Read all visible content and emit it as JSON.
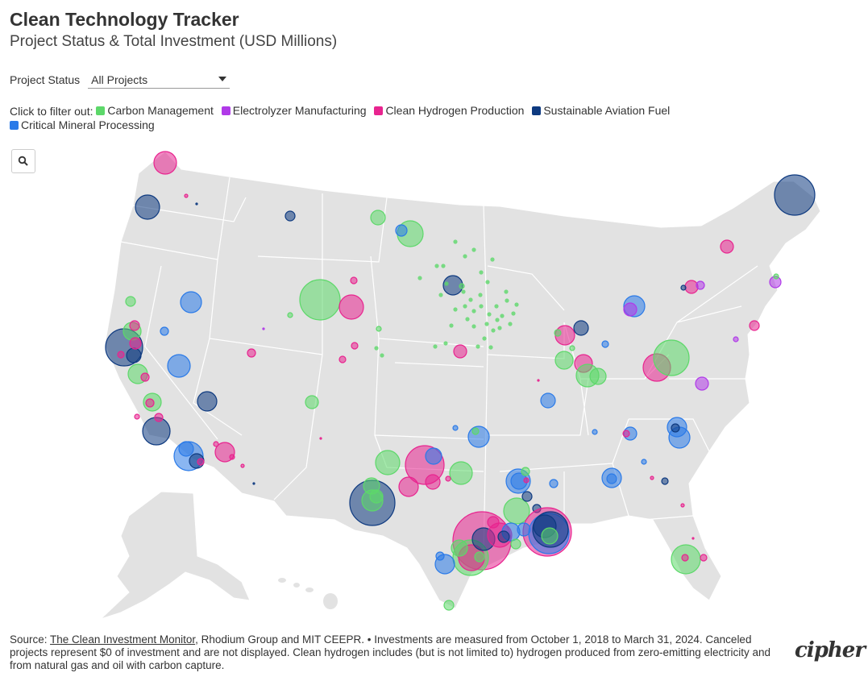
{
  "title": "Clean Technology Tracker",
  "subtitle": "Project Status & Total Investment (USD Millions)",
  "filter": {
    "label": "Project Status",
    "value": "All Projects"
  },
  "legend": {
    "prompt": "Click to filter out:",
    "items": [
      {
        "label": "Carbon Management",
        "color": "#5dd86a"
      },
      {
        "label": "Electrolyzer Manufacturing",
        "color": "#b03ae8"
      },
      {
        "label": "Clean Hydrogen Production",
        "color": "#e8248f"
      },
      {
        "label": "Sustainable Aviation Fuel",
        "color": "#0e3a80"
      },
      {
        "label": "Critical Mineral Processing",
        "color": "#2a7ae8"
      }
    ]
  },
  "zoom_button": {
    "icon": "search-icon"
  },
  "source": {
    "prefix": "Source: ",
    "link_text": "The Clean Investment Monitor",
    "rest": ", Rhodium Group and MIT CEEPR. • Investments are measured from October 1, 2018 to March 31, 2024. Canceled projects represent $0 of investment and are not displayed. Clean hydrogen includes (but is not limited to) hydrogen produced from zero-emitting electricity and from natural gas and oil with carbon capture."
  },
  "logo": "cipher"
}
